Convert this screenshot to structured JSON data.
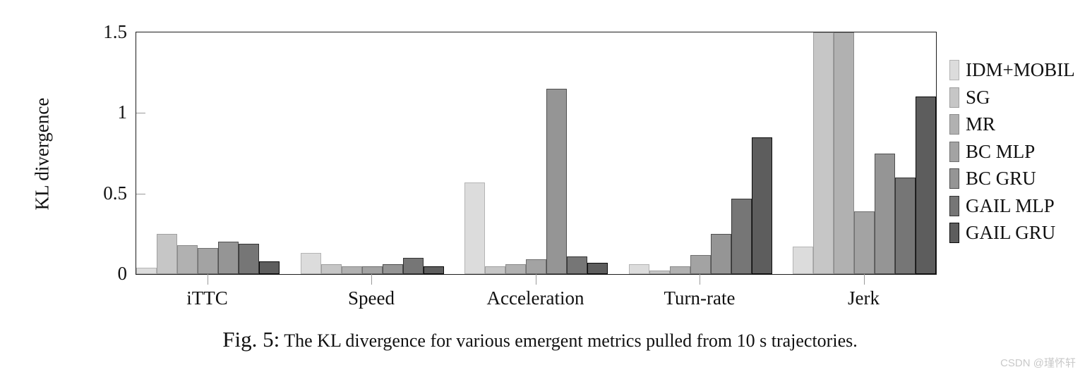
{
  "figure": {
    "caption_prefix": "Fig. 5:",
    "caption_text": " The KL divergence for various emergent metrics pulled from 10 s trajectories.",
    "watermark": "CSDN @瑾怀轩"
  },
  "chart_data": {
    "type": "bar",
    "title": "",
    "xlabel": "",
    "ylabel": "KL divergence",
    "ylim": [
      0,
      1.5
    ],
    "yticks": [
      "0",
      "0.5",
      "1",
      "1.5"
    ],
    "ytick_values": [
      0,
      0.5,
      1,
      1.5
    ],
    "grid": false,
    "legend_position": "right-outside",
    "categories": [
      "iTTC",
      "Speed",
      "Acceleration",
      "Turn-rate",
      "Jerk"
    ],
    "series": [
      {
        "name": "IDM+MOBIL",
        "fill": "#dcdcdc",
        "border": "#b4b4b4",
        "values": [
          0.04,
          0.13,
          0.57,
          0.06,
          0.17
        ]
      },
      {
        "name": "SG",
        "fill": "#c6c6c6",
        "border": "#9f9f9f",
        "values": [
          0.25,
          0.06,
          0.05,
          0.02,
          1.5
        ]
      },
      {
        "name": "MR",
        "fill": "#b1b1b1",
        "border": "#8a8a8a",
        "values": [
          0.18,
          0.05,
          0.06,
          0.05,
          1.5
        ]
      },
      {
        "name": "BC MLP",
        "fill": "#a3a3a3",
        "border": "#6f6f6f",
        "values": [
          0.16,
          0.05,
          0.09,
          0.12,
          0.39
        ]
      },
      {
        "name": "BC GRU",
        "fill": "#959595",
        "border": "#4f4f4f",
        "values": [
          0.2,
          0.06,
          1.15,
          0.25,
          0.75
        ]
      },
      {
        "name": "GAIL MLP",
        "fill": "#767676",
        "border": "#333333",
        "values": [
          0.19,
          0.1,
          0.11,
          0.47,
          0.6
        ]
      },
      {
        "name": "GAIL GRU",
        "fill": "#5d5d5d",
        "border": "#0a0a0a",
        "values": [
          0.08,
          0.05,
          0.07,
          0.85,
          1.1
        ]
      }
    ],
    "clipped_note": "Jerk bars for SG and MR reach the top of the axis (clipped at 1.5)"
  }
}
